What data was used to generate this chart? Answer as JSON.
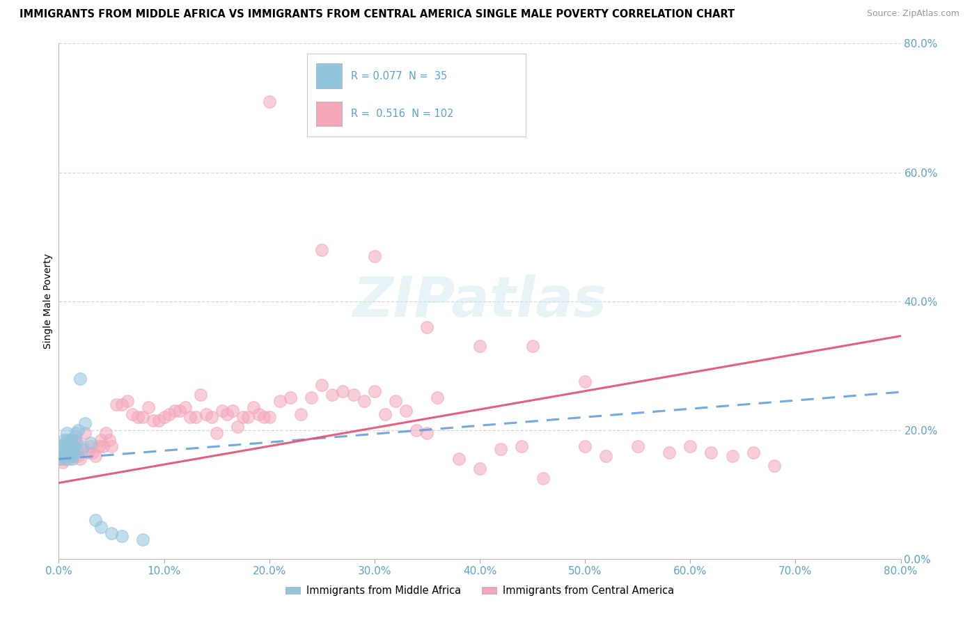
{
  "title": "IMMIGRANTS FROM MIDDLE AFRICA VS IMMIGRANTS FROM CENTRAL AMERICA SINGLE MALE POVERTY CORRELATION CHART",
  "source": "Source: ZipAtlas.com",
  "ylabel": "Single Male Poverty",
  "legend_label1": "Immigrants from Middle Africa",
  "legend_label2": "Immigrants from Central America",
  "R1": "0.077",
  "N1": "35",
  "R2": "0.516",
  "N2": "102",
  "color_blue": "#92C5DE",
  "color_pink": "#F4A6B8",
  "color_blue_line": "#5B9BD5",
  "color_pink_line": "#E05070",
  "xmin": 0.0,
  "xmax": 0.8,
  "ymin": 0.0,
  "ymax": 0.8,
  "blue_x": [
    0.002,
    0.003,
    0.004,
    0.005,
    0.005,
    0.006,
    0.006,
    0.007,
    0.007,
    0.008,
    0.008,
    0.009,
    0.009,
    0.01,
    0.01,
    0.011,
    0.011,
    0.012,
    0.012,
    0.013,
    0.013,
    0.014,
    0.015,
    0.016,
    0.017,
    0.018,
    0.02,
    0.022,
    0.025,
    0.03,
    0.035,
    0.04,
    0.05,
    0.06,
    0.08
  ],
  "blue_y": [
    0.155,
    0.16,
    0.175,
    0.17,
    0.185,
    0.165,
    0.18,
    0.17,
    0.155,
    0.175,
    0.195,
    0.16,
    0.175,
    0.185,
    0.165,
    0.17,
    0.175,
    0.16,
    0.185,
    0.17,
    0.155,
    0.175,
    0.165,
    0.195,
    0.18,
    0.2,
    0.28,
    0.17,
    0.21,
    0.18,
    0.06,
    0.05,
    0.04,
    0.035,
    0.03
  ],
  "pink_x": [
    0.003,
    0.004,
    0.005,
    0.005,
    0.006,
    0.006,
    0.007,
    0.007,
    0.008,
    0.008,
    0.009,
    0.009,
    0.01,
    0.01,
    0.011,
    0.012,
    0.013,
    0.014,
    0.015,
    0.016,
    0.017,
    0.018,
    0.02,
    0.022,
    0.025,
    0.028,
    0.03,
    0.032,
    0.035,
    0.038,
    0.04,
    0.042,
    0.045,
    0.048,
    0.05,
    0.055,
    0.06,
    0.065,
    0.07,
    0.075,
    0.08,
    0.085,
    0.09,
    0.095,
    0.1,
    0.105,
    0.11,
    0.115,
    0.12,
    0.125,
    0.13,
    0.135,
    0.14,
    0.145,
    0.15,
    0.155,
    0.16,
    0.165,
    0.17,
    0.175,
    0.18,
    0.185,
    0.19,
    0.195,
    0.2,
    0.21,
    0.22,
    0.23,
    0.24,
    0.25,
    0.26,
    0.27,
    0.28,
    0.29,
    0.3,
    0.31,
    0.32,
    0.33,
    0.34,
    0.35,
    0.36,
    0.38,
    0.4,
    0.42,
    0.44,
    0.46,
    0.5,
    0.52,
    0.55,
    0.58,
    0.6,
    0.62,
    0.64,
    0.66,
    0.68,
    0.3,
    0.35,
    0.4,
    0.45,
    0.5,
    0.2,
    0.25
  ],
  "pink_y": [
    0.155,
    0.15,
    0.165,
    0.175,
    0.16,
    0.175,
    0.155,
    0.165,
    0.17,
    0.185,
    0.165,
    0.175,
    0.155,
    0.165,
    0.175,
    0.17,
    0.16,
    0.175,
    0.185,
    0.19,
    0.17,
    0.16,
    0.155,
    0.175,
    0.195,
    0.165,
    0.175,
    0.165,
    0.16,
    0.175,
    0.185,
    0.175,
    0.195,
    0.185,
    0.175,
    0.24,
    0.24,
    0.245,
    0.225,
    0.22,
    0.22,
    0.235,
    0.215,
    0.215,
    0.22,
    0.225,
    0.23,
    0.23,
    0.235,
    0.22,
    0.22,
    0.255,
    0.225,
    0.22,
    0.195,
    0.23,
    0.225,
    0.23,
    0.205,
    0.22,
    0.22,
    0.235,
    0.225,
    0.22,
    0.22,
    0.245,
    0.25,
    0.225,
    0.25,
    0.27,
    0.255,
    0.26,
    0.255,
    0.245,
    0.26,
    0.225,
    0.245,
    0.23,
    0.2,
    0.195,
    0.25,
    0.155,
    0.14,
    0.17,
    0.175,
    0.125,
    0.175,
    0.16,
    0.175,
    0.165,
    0.175,
    0.165,
    0.16,
    0.165,
    0.145,
    0.47,
    0.36,
    0.33,
    0.33,
    0.275,
    0.71,
    0.48
  ]
}
